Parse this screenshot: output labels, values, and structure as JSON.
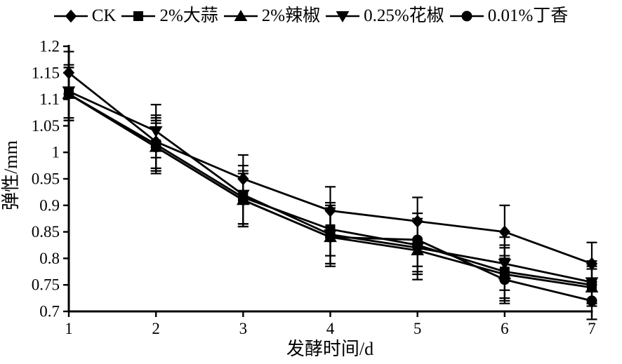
{
  "figure": {
    "background_color": "#ffffff",
    "ink_color": "#000000"
  },
  "chart_data": {
    "type": "line",
    "title": "",
    "xlabel": "发酵时间/d",
    "ylabel": "弹性/mm",
    "x": [
      1,
      2,
      3,
      4,
      5,
      6,
      7
    ],
    "xlim": [
      1,
      7
    ],
    "ylim": [
      0.7,
      1.2
    ],
    "x_tick_labels": [
      "1",
      "2",
      "3",
      "4",
      "5",
      "6",
      "7"
    ],
    "y_tick_values": [
      0.7,
      0.75,
      0.8,
      0.85,
      0.9,
      0.95,
      1.0,
      1.05,
      1.1,
      1.15,
      1.2
    ],
    "y_tick_labels": [
      "0.7",
      "0.75",
      "0.8",
      "0.85",
      "0.9",
      "0.95",
      "1",
      "1.05",
      "1.1",
      "1.15",
      "1.2"
    ],
    "grid": false,
    "legend_position": "top",
    "error_bars": true,
    "series": [
      {
        "name": "CK",
        "marker": "diamond",
        "color": "#000000",
        "values": [
          1.15,
          1.02,
          0.95,
          0.89,
          0.87,
          0.85,
          0.79
        ],
        "errors": [
          0.04,
          0.05,
          0.045,
          0.045,
          0.045,
          0.05,
          0.04
        ]
      },
      {
        "name": "2%大蒜",
        "marker": "square",
        "color": "#000000",
        "values": [
          1.11,
          1.015,
          0.915,
          0.855,
          0.825,
          0.775,
          0.75
        ],
        "errors": [
          0.05,
          0.05,
          0.05,
          0.05,
          0.05,
          0.05,
          0.035
        ]
      },
      {
        "name": "2%辣椒",
        "marker": "triangle-up",
        "color": "#000000",
        "values": [
          1.11,
          1.01,
          0.91,
          0.84,
          0.815,
          0.77,
          0.745
        ],
        "errors": [
          0.05,
          0.05,
          0.05,
          0.05,
          0.055,
          0.05,
          0.035
        ]
      },
      {
        "name": "0.25%花椒",
        "marker": "triangle-down",
        "color": "#000000",
        "values": [
          1.115,
          1.04,
          0.92,
          0.845,
          0.82,
          0.79,
          0.755
        ],
        "errors": [
          0.05,
          0.05,
          0.055,
          0.055,
          0.05,
          0.05,
          0.04
        ]
      },
      {
        "name": "0.01%丁香",
        "marker": "circle",
        "color": "#000000",
        "values": [
          1.11,
          1.01,
          0.91,
          0.84,
          0.835,
          0.76,
          0.72
        ],
        "errors": [
          0.05,
          0.045,
          0.05,
          0.055,
          0.05,
          0.045,
          0.035
        ]
      }
    ]
  }
}
